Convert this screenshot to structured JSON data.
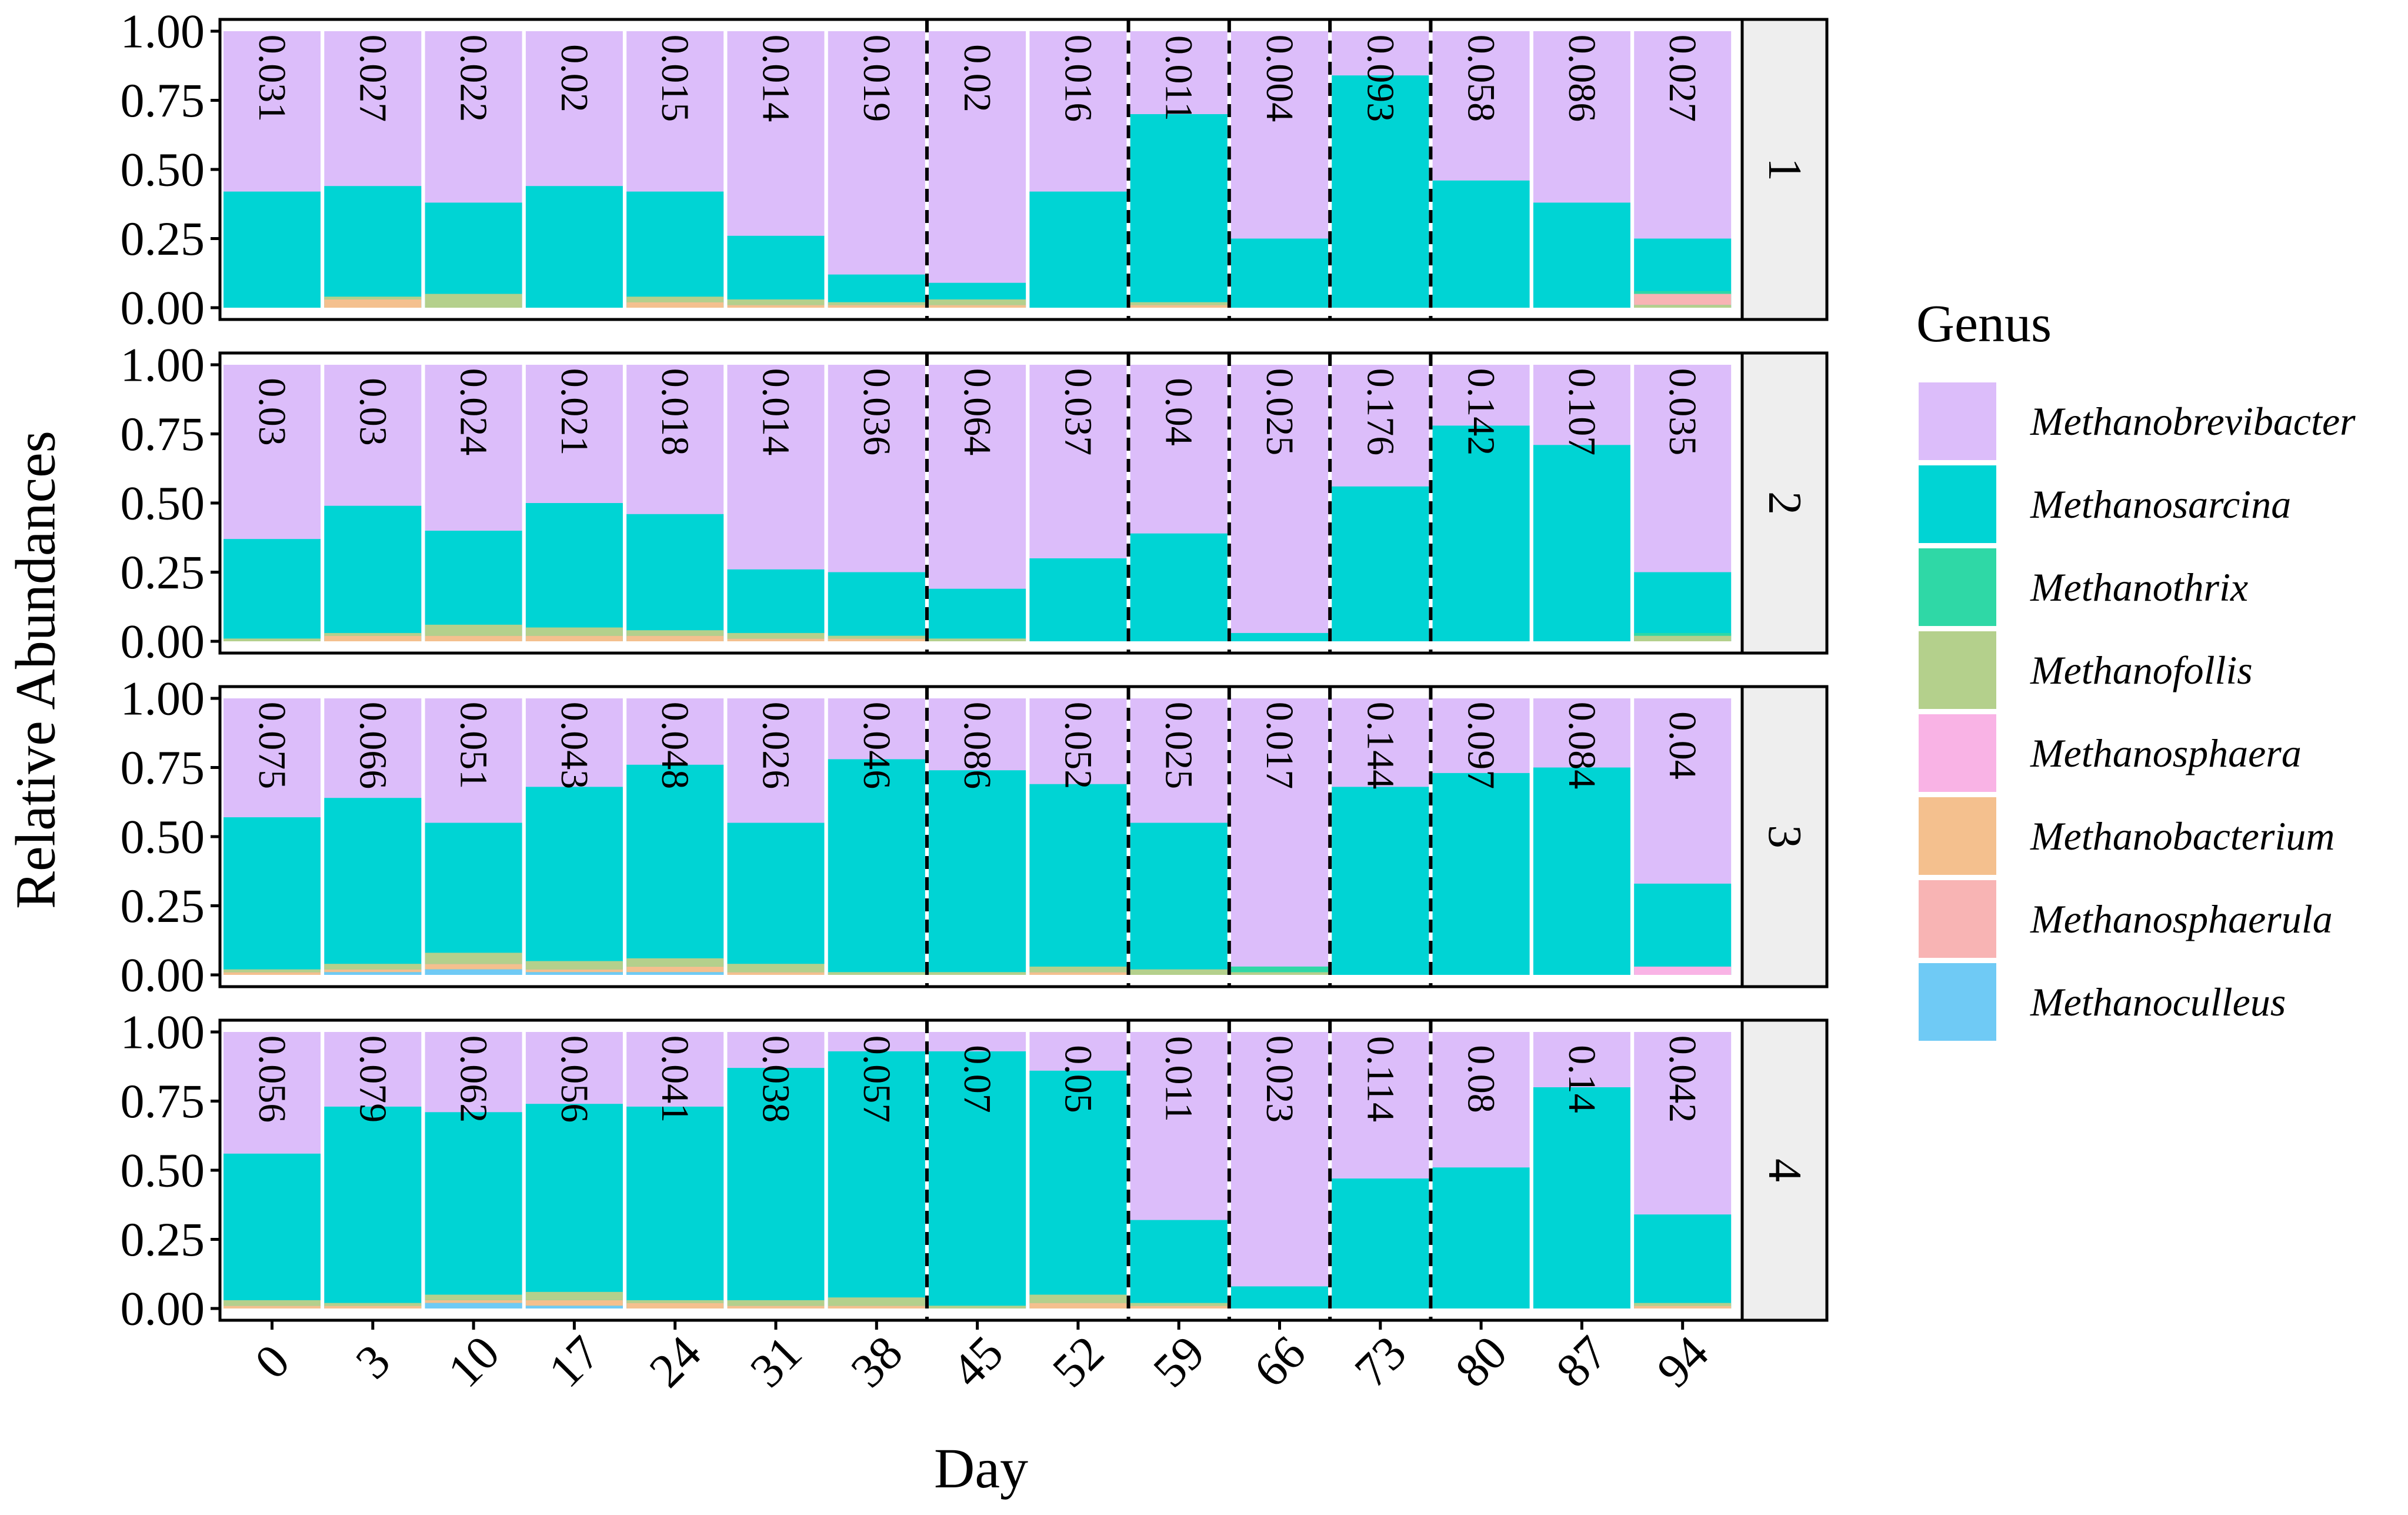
{
  "chart_data": {
    "type": "bar",
    "stacked": true,
    "xlabel": "Day",
    "ylabel": "Relative Abundances",
    "ylim": [
      0,
      1
    ],
    "yticks": [
      "0.00",
      "0.25",
      "0.50",
      "0.75",
      "1.00"
    ],
    "categories": [
      "0",
      "3",
      "10",
      "17",
      "24",
      "31",
      "38",
      "45",
      "52",
      "59",
      "66",
      "73",
      "80",
      "87",
      "94"
    ],
    "phase_boundaries_after": [
      "38",
      "52",
      "59",
      "66",
      "73"
    ],
    "legend": {
      "title": "Genus",
      "position": "right",
      "entries": [
        {
          "name": "Methanobrevibacter",
          "color": "#dcbdfa"
        },
        {
          "name": "Methanosarcina",
          "color": "#00d4d4"
        },
        {
          "name": "Methanothrix",
          "color": "#2fd8a6"
        },
        {
          "name": "Methanofollis",
          "color": "#b4d08c"
        },
        {
          "name": "Methanosphaera",
          "color": "#f9b3e5"
        },
        {
          "name": "Methanobacterium",
          "color": "#f4c08e"
        },
        {
          "name": "Methanosphaerula",
          "color": "#f8b4b4"
        },
        {
          "name": "Methanoculleus",
          "color": "#6fcaf5"
        }
      ]
    },
    "panels": [
      {
        "strip": "1",
        "methanosarcina_top": [
          0.42,
          0.44,
          0.38,
          0.44,
          0.42,
          0.26,
          0.12,
          0.09,
          0.42,
          0.7,
          0.25,
          0.84,
          0.46,
          0.38,
          0.25
        ],
        "minor_segments": [
          {
            "genus": "Methanobacterium",
            "values": [
              0.0,
              0.03,
              0.0,
              0.0,
              0.02,
              0.01,
              0.01,
              0.01,
              0.0,
              0.01,
              0.0,
              0.0,
              0.0,
              0.0,
              0.0
            ]
          },
          {
            "genus": "Methanofollis",
            "values": [
              0.0,
              0.01,
              0.05,
              0.0,
              0.02,
              0.02,
              0.01,
              0.02,
              0.0,
              0.01,
              0.0,
              0.0,
              0.0,
              0.0,
              0.01
            ]
          },
          {
            "genus": "Methanosphaerula",
            "values": [
              0.0,
              0.0,
              0.0,
              0.0,
              0.0,
              0.0,
              0.0,
              0.0,
              0.0,
              0.0,
              0.0,
              0.0,
              0.0,
              0.0,
              0.04
            ]
          },
          {
            "genus": "Methanothrix",
            "values": [
              0.0,
              0.0,
              0.0,
              0.0,
              0.0,
              0.0,
              0.0,
              0.0,
              0.0,
              0.0,
              0.0,
              0.0,
              0.0,
              0.0,
              0.01
            ]
          }
        ],
        "labels": [
          "0.031",
          "0.027",
          "0.022",
          "0.02",
          "0.015",
          "0.014",
          "0.019",
          "0.02",
          "0.016",
          "0.011",
          "0.004",
          "0.093",
          "0.058",
          "0.086",
          "0.027"
        ]
      },
      {
        "strip": "2",
        "methanosarcina_top": [
          0.37,
          0.49,
          0.4,
          0.5,
          0.46,
          0.26,
          0.25,
          0.19,
          0.3,
          0.39,
          0.03,
          0.56,
          0.78,
          0.71,
          0.25
        ],
        "minor_segments": [
          {
            "genus": "Methanobacterium",
            "values": [
              0.0,
              0.02,
              0.02,
              0.02,
              0.02,
              0.01,
              0.01,
              0.0,
              0.0,
              0.0,
              0.0,
              0.0,
              0.0,
              0.0,
              0.0
            ]
          },
          {
            "genus": "Methanofollis",
            "values": [
              0.01,
              0.01,
              0.04,
              0.03,
              0.02,
              0.02,
              0.01,
              0.01,
              0.0,
              0.0,
              0.0,
              0.0,
              0.0,
              0.0,
              0.02
            ]
          },
          {
            "genus": "Methanothrix",
            "values": [
              0.0,
              0.0,
              0.0,
              0.0,
              0.0,
              0.0,
              0.0,
              0.0,
              0.0,
              0.0,
              0.0,
              0.0,
              0.0,
              0.0,
              0.01
            ]
          }
        ],
        "labels": [
          "0.03",
          "0.03",
          "0.024",
          "0.021",
          "0.018",
          "0.014",
          "0.036",
          "0.064",
          "0.037",
          "0.04",
          "0.025",
          "0.176",
          "0.142",
          "0.107",
          "0.035"
        ]
      },
      {
        "strip": "3",
        "methanosarcina_top": [
          0.57,
          0.64,
          0.55,
          0.68,
          0.76,
          0.55,
          0.78,
          0.74,
          0.69,
          0.55,
          0.03,
          0.68,
          0.73,
          0.75,
          0.33
        ],
        "minor_segments": [
          {
            "genus": "Methanoculleus",
            "values": [
              0.0,
              0.01,
              0.02,
              0.01,
              0.01,
              0.0,
              0.0,
              0.0,
              0.0,
              0.0,
              0.0,
              0.0,
              0.0,
              0.0,
              0.0
            ]
          },
          {
            "genus": "Methanobacterium",
            "values": [
              0.01,
              0.01,
              0.02,
              0.01,
              0.02,
              0.01,
              0.0,
              0.0,
              0.01,
              0.0,
              0.0,
              0.0,
              0.0,
              0.0,
              0.0
            ]
          },
          {
            "genus": "Methanofollis",
            "values": [
              0.01,
              0.02,
              0.04,
              0.03,
              0.03,
              0.03,
              0.01,
              0.01,
              0.02,
              0.02,
              0.01,
              0.0,
              0.0,
              0.0,
              0.0
            ]
          },
          {
            "genus": "Methanosphaera",
            "values": [
              0.0,
              0.0,
              0.0,
              0.0,
              0.0,
              0.0,
              0.0,
              0.0,
              0.0,
              0.0,
              0.0,
              0.0,
              0.0,
              0.0,
              0.03
            ]
          },
          {
            "genus": "Methanothrix",
            "values": [
              0.0,
              0.0,
              0.0,
              0.0,
              0.0,
              0.0,
              0.0,
              0.0,
              0.0,
              0.0,
              0.02,
              0.0,
              0.0,
              0.0,
              0.0
            ]
          }
        ],
        "labels": [
          "0.075",
          "0.066",
          "0.051",
          "0.043",
          "0.048",
          "0.026",
          "0.046",
          "0.086",
          "0.052",
          "0.025",
          "0.017",
          "0.144",
          "0.097",
          "0.084",
          "0.04"
        ]
      },
      {
        "strip": "4",
        "methanosarcina_top": [
          0.56,
          0.73,
          0.71,
          0.74,
          0.73,
          0.87,
          0.93,
          0.93,
          0.86,
          0.32,
          0.08,
          0.47,
          0.51,
          0.8,
          0.34
        ],
        "minor_segments": [
          {
            "genus": "Methanoculleus",
            "values": [
              0.0,
              0.0,
              0.02,
              0.01,
              0.0,
              0.0,
              0.0,
              0.0,
              0.0,
              0.0,
              0.0,
              0.0,
              0.0,
              0.0,
              0.0
            ]
          },
          {
            "genus": "Methanobacterium",
            "values": [
              0.01,
              0.01,
              0.01,
              0.02,
              0.02,
              0.01,
              0.01,
              0.0,
              0.02,
              0.01,
              0.0,
              0.0,
              0.0,
              0.0,
              0.01
            ]
          },
          {
            "genus": "Methanofollis",
            "values": [
              0.02,
              0.01,
              0.02,
              0.03,
              0.01,
              0.02,
              0.03,
              0.01,
              0.03,
              0.01,
              0.0,
              0.0,
              0.0,
              0.0,
              0.01
            ]
          }
        ],
        "labels": [
          "0.056",
          "0.079",
          "0.062",
          "0.056",
          "0.041",
          "0.038",
          "0.057",
          "0.07",
          "0.05",
          "0.011",
          "0.023",
          "0.114",
          "0.08",
          "0.14",
          "0.042"
        ]
      }
    ]
  }
}
